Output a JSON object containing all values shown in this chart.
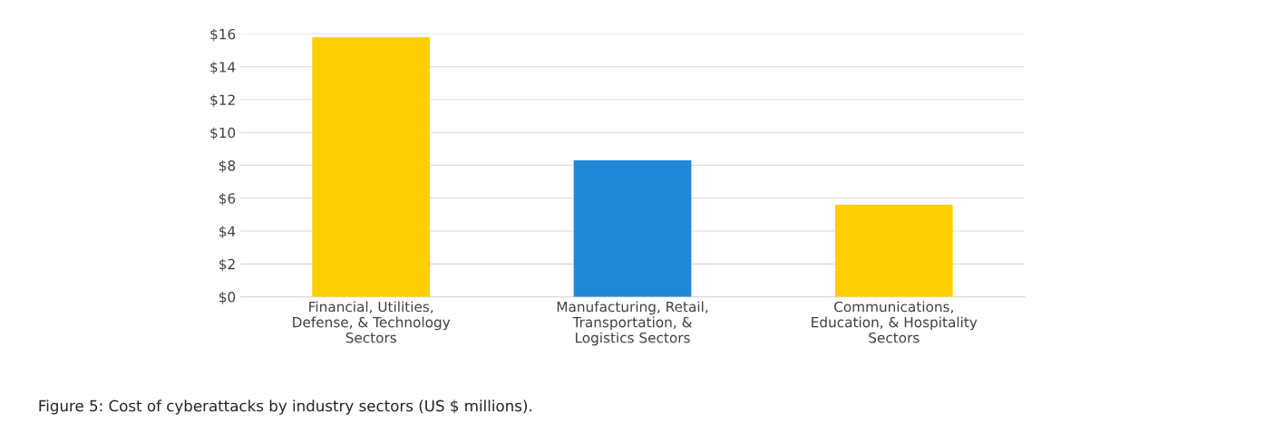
{
  "chart_data": {
    "type": "bar",
    "categories": [
      "Financial, Utilities,\nDefense, & Technology\nSectors",
      "Manufacturing, Retail,\nTransportation, &\nLogistics Sectors",
      "Communications,\nEducation, & Hospitality\nSectors"
    ],
    "values": [
      15.8,
      8.3,
      5.6
    ],
    "colors": [
      "#ffd000",
      "#1f88d8",
      "#ffd000"
    ],
    "ylim": [
      0,
      16
    ],
    "yticks": [
      {
        "value": 0,
        "label": "$0"
      },
      {
        "value": 2,
        "label": "$2"
      },
      {
        "value": 4,
        "label": "$4"
      },
      {
        "value": 6,
        "label": "$6"
      },
      {
        "value": 8,
        "label": "$8"
      },
      {
        "value": 10,
        "label": "$10"
      },
      {
        "value": 12,
        "label": "$12"
      },
      {
        "value": 14,
        "label": "$14"
      },
      {
        "value": 16,
        "label": "$16"
      }
    ],
    "grid": "y",
    "legend": false,
    "annotations": [
      "Figure 5: Cost of cyberattacks by industry sectors (US $ millions)."
    ]
  }
}
